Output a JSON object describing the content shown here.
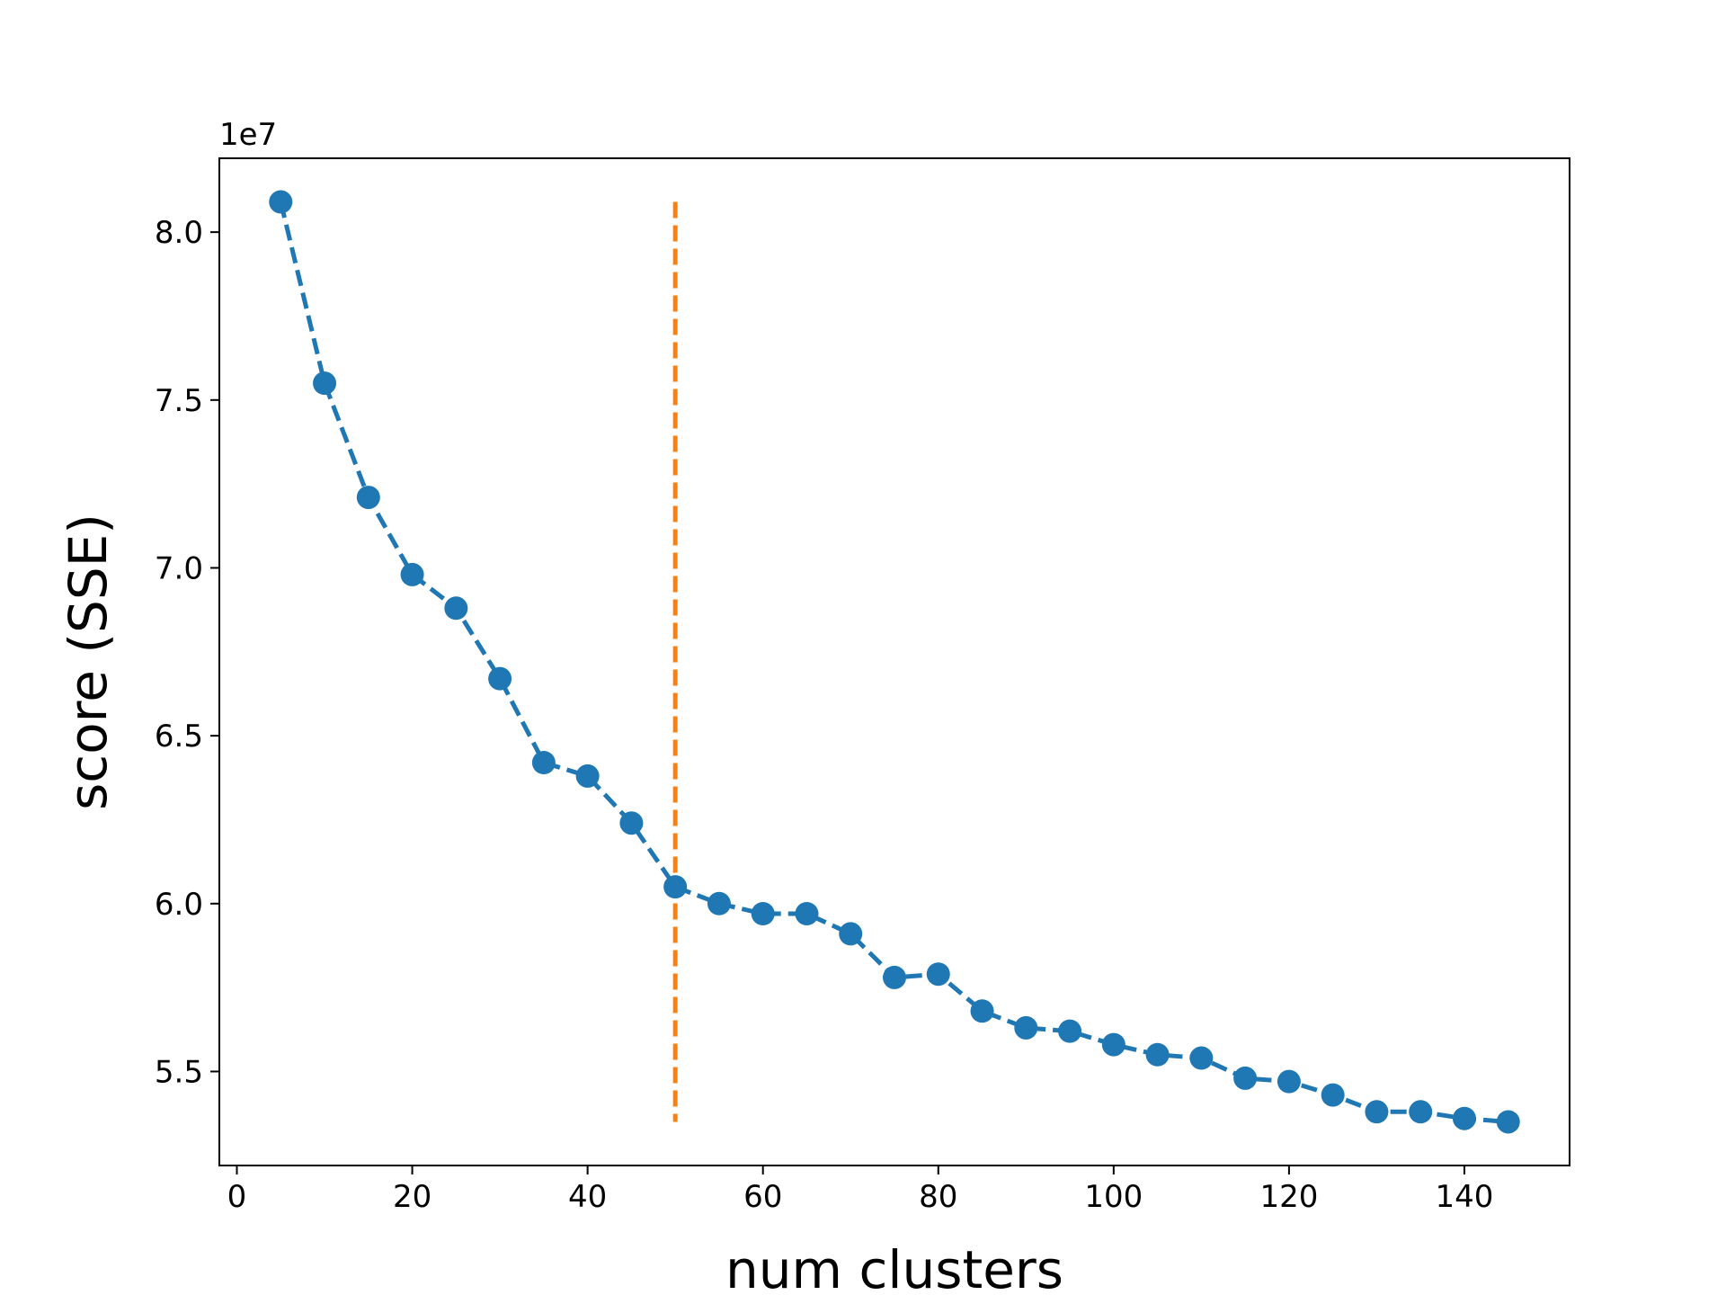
{
  "chart_data": {
    "type": "line",
    "title": "",
    "xlabel": "num clusters",
    "ylabel": "score (SSE)",
    "y_offset_label": "1e7",
    "y_scale_factor": 10000000,
    "xlim": [
      -2,
      152
    ],
    "ylim": [
      5.22,
      8.22
    ],
    "x_ticks": [
      0,
      20,
      40,
      60,
      80,
      100,
      120,
      140
    ],
    "x_tick_labels": [
      "0",
      "20",
      "40",
      "60",
      "80",
      "100",
      "120",
      "140"
    ],
    "y_ticks": [
      5.5,
      6.0,
      6.5,
      7.0,
      7.5,
      8.0
    ],
    "y_tick_labels": [
      "5.5",
      "6.0",
      "6.5",
      "7.0",
      "7.5",
      "8.0"
    ],
    "grid": false,
    "series": [
      {
        "color": "#1f77b4",
        "line_style": "dashed",
        "marker": "circle",
        "x": [
          5,
          10,
          15,
          20,
          25,
          30,
          35,
          40,
          45,
          50,
          55,
          60,
          65,
          70,
          75,
          80,
          85,
          90,
          95,
          100,
          105,
          110,
          115,
          120,
          125,
          130,
          135,
          140,
          145
        ],
        "y": [
          8.09,
          7.55,
          7.21,
          6.98,
          6.88,
          6.67,
          6.42,
          6.38,
          6.24,
          6.05,
          6.0,
          5.97,
          5.97,
          5.91,
          5.78,
          5.79,
          5.68,
          5.63,
          5.62,
          5.58,
          5.55,
          5.54,
          5.48,
          5.47,
          5.43,
          5.38,
          5.38,
          5.36,
          5.35
        ]
      }
    ],
    "vertical_line": {
      "x": 50,
      "y_from": 5.35,
      "y_to": 8.09,
      "color": "#ff7f0e",
      "line_style": "dashed"
    }
  }
}
